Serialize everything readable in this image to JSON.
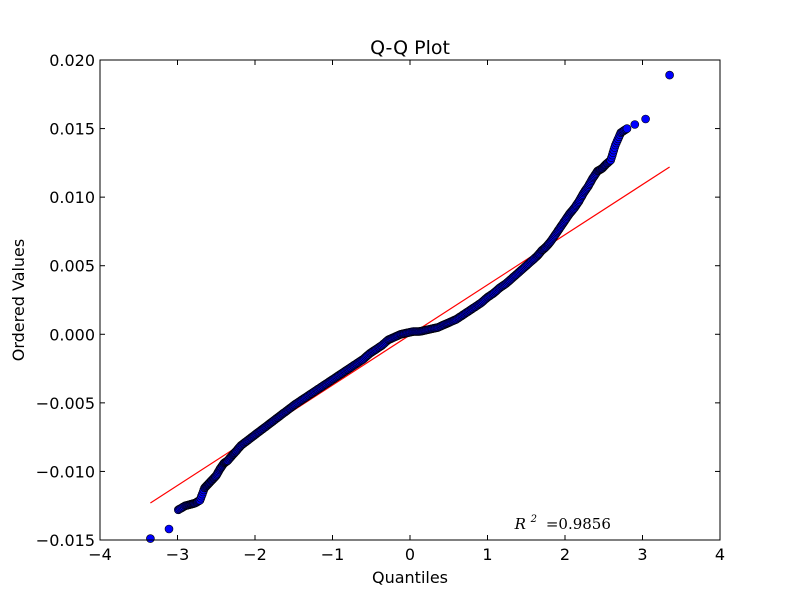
{
  "chart_data": {
    "type": "scatter",
    "title": "Q-Q Plot",
    "xlabel": "Quantiles",
    "ylabel": "Ordered Values",
    "xlim": [
      -4,
      4
    ],
    "ylim": [
      -0.015,
      0.02
    ],
    "grid": false,
    "legend": "none",
    "x_ticks": [
      -4,
      -3,
      -2,
      -1,
      0,
      1,
      2,
      3,
      4
    ],
    "x_tick_labels": [
      "−4",
      "−3",
      "−2",
      "−1",
      "0",
      "1",
      "2",
      "3",
      "4"
    ],
    "y_ticks": [
      -0.015,
      -0.01,
      -0.005,
      0,
      0.005,
      0.01,
      0.015,
      0.02
    ],
    "y_tick_labels": [
      "−0.015",
      "−0.010",
      "−0.005",
      "0.000",
      "0.005",
      "0.010",
      "0.015",
      "0.020"
    ],
    "annotation": {
      "var": "R",
      "sup": "2",
      "text": "=0.9856",
      "x": 1.35,
      "y": -0.0142
    },
    "fit_line": {
      "x": [
        -3.35,
        3.35
      ],
      "y": [
        -0.0123,
        0.0122
      ],
      "color": "#ff0000"
    },
    "series": [
      {
        "color": "#0000ff",
        "points": [
          [
            -3.35,
            -0.0149
          ],
          [
            -3.11,
            -0.0142
          ],
          [
            -2.99,
            -0.0128
          ],
          [
            -2.9,
            -0.0125
          ],
          [
            -2.83,
            -0.0124
          ],
          [
            -2.77,
            -0.0123
          ],
          [
            -2.71,
            -0.0121
          ],
          [
            -2.65,
            -0.0112
          ],
          [
            -2.6,
            -0.0109
          ],
          [
            -2.55,
            -0.0106
          ],
          [
            -2.5,
            -0.0103
          ],
          [
            -2.45,
            -0.0098
          ],
          [
            -2.4,
            -0.0094
          ],
          [
            -2.35,
            -0.0092
          ],
          [
            -2.29,
            -0.0088
          ],
          [
            -2.24,
            -0.0085
          ],
          [
            -2.18,
            -0.0081
          ],
          [
            -2.11,
            -0.0078
          ],
          [
            -2.04,
            -0.0075
          ],
          [
            -1.97,
            -0.0072
          ],
          [
            -1.9,
            -0.0069
          ],
          [
            -1.83,
            -0.0066
          ],
          [
            -1.76,
            -0.0063
          ],
          [
            -1.69,
            -0.006
          ],
          [
            -1.62,
            -0.0057
          ],
          [
            -1.55,
            -0.0054
          ],
          [
            -1.48,
            -0.0051
          ],
          [
            -1.4,
            -0.0048
          ],
          [
            -1.32,
            -0.0045
          ],
          [
            -1.24,
            -0.0042
          ],
          [
            -1.16,
            -0.0039
          ],
          [
            -1.08,
            -0.0036
          ],
          [
            -1.0,
            -0.0033
          ],
          [
            -0.92,
            -0.003
          ],
          [
            -0.84,
            -0.0027
          ],
          [
            -0.76,
            -0.0024
          ],
          [
            -0.68,
            -0.0021
          ],
          [
            -0.6,
            -0.0018
          ],
          [
            -0.52,
            -0.0014
          ],
          [
            -0.44,
            -0.0011
          ],
          [
            -0.36,
            -0.0008
          ],
          [
            -0.28,
            -0.0004
          ],
          [
            -0.2,
            -0.0002
          ],
          [
            -0.12,
            0.0
          ],
          [
            -0.04,
            0.0001
          ],
          [
            0.04,
            0.0002
          ],
          [
            0.12,
            0.0002
          ],
          [
            0.2,
            0.0003
          ],
          [
            0.28,
            0.0004
          ],
          [
            0.36,
            0.0005
          ],
          [
            0.44,
            0.0007
          ],
          [
            0.52,
            0.0009
          ],
          [
            0.6,
            0.0011
          ],
          [
            0.68,
            0.0014
          ],
          [
            0.76,
            0.0017
          ],
          [
            0.84,
            0.002
          ],
          [
            0.92,
            0.0023
          ],
          [
            1.0,
            0.0027
          ],
          [
            1.08,
            0.003
          ],
          [
            1.16,
            0.0034
          ],
          [
            1.24,
            0.0037
          ],
          [
            1.32,
            0.0041
          ],
          [
            1.4,
            0.0045
          ],
          [
            1.48,
            0.0049
          ],
          [
            1.56,
            0.0053
          ],
          [
            1.64,
            0.0057
          ],
          [
            1.7,
            0.0061
          ],
          [
            1.76,
            0.0064
          ],
          [
            1.82,
            0.0068
          ],
          [
            1.88,
            0.0073
          ],
          [
            1.94,
            0.0078
          ],
          [
            2.0,
            0.0083
          ],
          [
            2.06,
            0.0088
          ],
          [
            2.12,
            0.0092
          ],
          [
            2.18,
            0.0097
          ],
          [
            2.24,
            0.0103
          ],
          [
            2.3,
            0.0108
          ],
          [
            2.36,
            0.0114
          ],
          [
            2.42,
            0.0119
          ],
          [
            2.48,
            0.0121
          ],
          [
            2.53,
            0.0124
          ],
          [
            2.59,
            0.0127
          ],
          [
            2.65,
            0.0138
          ],
          [
            2.72,
            0.0147
          ],
          [
            2.8,
            0.015
          ],
          [
            2.9,
            0.0153
          ],
          [
            3.04,
            0.0157
          ],
          [
            3.35,
            0.0189
          ]
        ]
      }
    ]
  }
}
